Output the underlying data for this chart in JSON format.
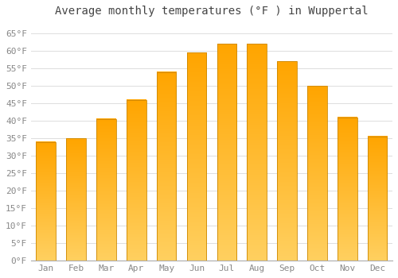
{
  "title": "Average monthly temperatures (°F ) in Wuppertal",
  "months": [
    "Jan",
    "Feb",
    "Mar",
    "Apr",
    "May",
    "Jun",
    "Jul",
    "Aug",
    "Sep",
    "Oct",
    "Nov",
    "Dec"
  ],
  "values": [
    34,
    35,
    40.5,
    46,
    54,
    59.5,
    62,
    62,
    57,
    50,
    41,
    35.5
  ],
  "bar_color_top": "#FFA500",
  "bar_color_bottom": "#FFD060",
  "bar_edge_color": "#CC8800",
  "background_color": "#FFFFFF",
  "yticks": [
    0,
    5,
    10,
    15,
    20,
    25,
    30,
    35,
    40,
    45,
    50,
    55,
    60,
    65
  ],
  "ylim": [
    0,
    68
  ],
  "title_fontsize": 10,
  "tick_fontsize": 8,
  "grid_color": "#DDDDDD"
}
